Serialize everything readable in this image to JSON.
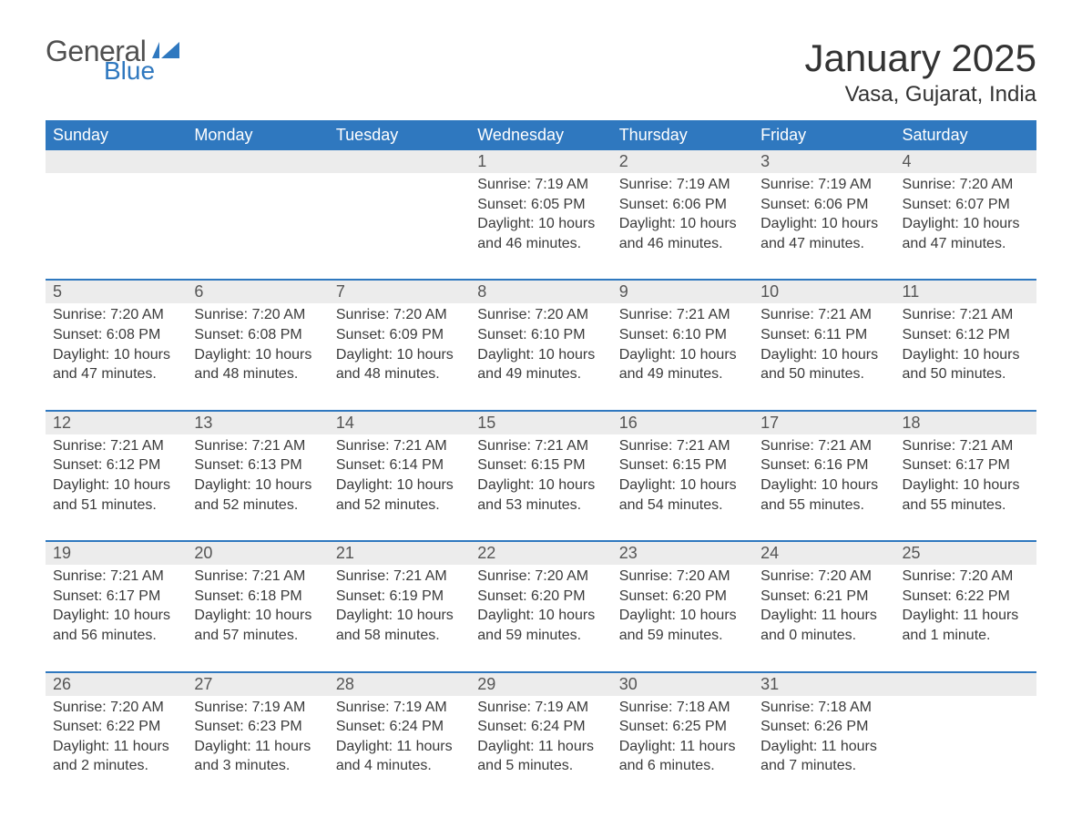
{
  "logo": {
    "general": "General",
    "blue": "Blue"
  },
  "title": "January 2025",
  "location": "Vasa, Gujarat, India",
  "weekdays": [
    "Sunday",
    "Monday",
    "Tuesday",
    "Wednesday",
    "Thursday",
    "Friday",
    "Saturday"
  ],
  "colors": {
    "header_bg": "#2f78bf",
    "header_text": "#ffffff",
    "row_separator": "#2f78bf",
    "date_bg": "#ececec",
    "body_text": "#3a3a3a",
    "page_bg": "#ffffff"
  },
  "weeks": [
    [
      {
        "date": "",
        "sunrise": "",
        "sunset": "",
        "daylight1": "",
        "daylight2": ""
      },
      {
        "date": "",
        "sunrise": "",
        "sunset": "",
        "daylight1": "",
        "daylight2": ""
      },
      {
        "date": "",
        "sunrise": "",
        "sunset": "",
        "daylight1": "",
        "daylight2": ""
      },
      {
        "date": "1",
        "sunrise": "Sunrise: 7:19 AM",
        "sunset": "Sunset: 6:05 PM",
        "daylight1": "Daylight: 10 hours",
        "daylight2": "and 46 minutes."
      },
      {
        "date": "2",
        "sunrise": "Sunrise: 7:19 AM",
        "sunset": "Sunset: 6:06 PM",
        "daylight1": "Daylight: 10 hours",
        "daylight2": "and 46 minutes."
      },
      {
        "date": "3",
        "sunrise": "Sunrise: 7:19 AM",
        "sunset": "Sunset: 6:06 PM",
        "daylight1": "Daylight: 10 hours",
        "daylight2": "and 47 minutes."
      },
      {
        "date": "4",
        "sunrise": "Sunrise: 7:20 AM",
        "sunset": "Sunset: 6:07 PM",
        "daylight1": "Daylight: 10 hours",
        "daylight2": "and 47 minutes."
      }
    ],
    [
      {
        "date": "5",
        "sunrise": "Sunrise: 7:20 AM",
        "sunset": "Sunset: 6:08 PM",
        "daylight1": "Daylight: 10 hours",
        "daylight2": "and 47 minutes."
      },
      {
        "date": "6",
        "sunrise": "Sunrise: 7:20 AM",
        "sunset": "Sunset: 6:08 PM",
        "daylight1": "Daylight: 10 hours",
        "daylight2": "and 48 minutes."
      },
      {
        "date": "7",
        "sunrise": "Sunrise: 7:20 AM",
        "sunset": "Sunset: 6:09 PM",
        "daylight1": "Daylight: 10 hours",
        "daylight2": "and 48 minutes."
      },
      {
        "date": "8",
        "sunrise": "Sunrise: 7:20 AM",
        "sunset": "Sunset: 6:10 PM",
        "daylight1": "Daylight: 10 hours",
        "daylight2": "and 49 minutes."
      },
      {
        "date": "9",
        "sunrise": "Sunrise: 7:21 AM",
        "sunset": "Sunset: 6:10 PM",
        "daylight1": "Daylight: 10 hours",
        "daylight2": "and 49 minutes."
      },
      {
        "date": "10",
        "sunrise": "Sunrise: 7:21 AM",
        "sunset": "Sunset: 6:11 PM",
        "daylight1": "Daylight: 10 hours",
        "daylight2": "and 50 minutes."
      },
      {
        "date": "11",
        "sunrise": "Sunrise: 7:21 AM",
        "sunset": "Sunset: 6:12 PM",
        "daylight1": "Daylight: 10 hours",
        "daylight2": "and 50 minutes."
      }
    ],
    [
      {
        "date": "12",
        "sunrise": "Sunrise: 7:21 AM",
        "sunset": "Sunset: 6:12 PM",
        "daylight1": "Daylight: 10 hours",
        "daylight2": "and 51 minutes."
      },
      {
        "date": "13",
        "sunrise": "Sunrise: 7:21 AM",
        "sunset": "Sunset: 6:13 PM",
        "daylight1": "Daylight: 10 hours",
        "daylight2": "and 52 minutes."
      },
      {
        "date": "14",
        "sunrise": "Sunrise: 7:21 AM",
        "sunset": "Sunset: 6:14 PM",
        "daylight1": "Daylight: 10 hours",
        "daylight2": "and 52 minutes."
      },
      {
        "date": "15",
        "sunrise": "Sunrise: 7:21 AM",
        "sunset": "Sunset: 6:15 PM",
        "daylight1": "Daylight: 10 hours",
        "daylight2": "and 53 minutes."
      },
      {
        "date": "16",
        "sunrise": "Sunrise: 7:21 AM",
        "sunset": "Sunset: 6:15 PM",
        "daylight1": "Daylight: 10 hours",
        "daylight2": "and 54 minutes."
      },
      {
        "date": "17",
        "sunrise": "Sunrise: 7:21 AM",
        "sunset": "Sunset: 6:16 PM",
        "daylight1": "Daylight: 10 hours",
        "daylight2": "and 55 minutes."
      },
      {
        "date": "18",
        "sunrise": "Sunrise: 7:21 AM",
        "sunset": "Sunset: 6:17 PM",
        "daylight1": "Daylight: 10 hours",
        "daylight2": "and 55 minutes."
      }
    ],
    [
      {
        "date": "19",
        "sunrise": "Sunrise: 7:21 AM",
        "sunset": "Sunset: 6:17 PM",
        "daylight1": "Daylight: 10 hours",
        "daylight2": "and 56 minutes."
      },
      {
        "date": "20",
        "sunrise": "Sunrise: 7:21 AM",
        "sunset": "Sunset: 6:18 PM",
        "daylight1": "Daylight: 10 hours",
        "daylight2": "and 57 minutes."
      },
      {
        "date": "21",
        "sunrise": "Sunrise: 7:21 AM",
        "sunset": "Sunset: 6:19 PM",
        "daylight1": "Daylight: 10 hours",
        "daylight2": "and 58 minutes."
      },
      {
        "date": "22",
        "sunrise": "Sunrise: 7:20 AM",
        "sunset": "Sunset: 6:20 PM",
        "daylight1": "Daylight: 10 hours",
        "daylight2": "and 59 minutes."
      },
      {
        "date": "23",
        "sunrise": "Sunrise: 7:20 AM",
        "sunset": "Sunset: 6:20 PM",
        "daylight1": "Daylight: 10 hours",
        "daylight2": "and 59 minutes."
      },
      {
        "date": "24",
        "sunrise": "Sunrise: 7:20 AM",
        "sunset": "Sunset: 6:21 PM",
        "daylight1": "Daylight: 11 hours",
        "daylight2": "and 0 minutes."
      },
      {
        "date": "25",
        "sunrise": "Sunrise: 7:20 AM",
        "sunset": "Sunset: 6:22 PM",
        "daylight1": "Daylight: 11 hours",
        "daylight2": "and 1 minute."
      }
    ],
    [
      {
        "date": "26",
        "sunrise": "Sunrise: 7:20 AM",
        "sunset": "Sunset: 6:22 PM",
        "daylight1": "Daylight: 11 hours",
        "daylight2": "and 2 minutes."
      },
      {
        "date": "27",
        "sunrise": "Sunrise: 7:19 AM",
        "sunset": "Sunset: 6:23 PM",
        "daylight1": "Daylight: 11 hours",
        "daylight2": "and 3 minutes."
      },
      {
        "date": "28",
        "sunrise": "Sunrise: 7:19 AM",
        "sunset": "Sunset: 6:24 PM",
        "daylight1": "Daylight: 11 hours",
        "daylight2": "and 4 minutes."
      },
      {
        "date": "29",
        "sunrise": "Sunrise: 7:19 AM",
        "sunset": "Sunset: 6:24 PM",
        "daylight1": "Daylight: 11 hours",
        "daylight2": "and 5 minutes."
      },
      {
        "date": "30",
        "sunrise": "Sunrise: 7:18 AM",
        "sunset": "Sunset: 6:25 PM",
        "daylight1": "Daylight: 11 hours",
        "daylight2": "and 6 minutes."
      },
      {
        "date": "31",
        "sunrise": "Sunrise: 7:18 AM",
        "sunset": "Sunset: 6:26 PM",
        "daylight1": "Daylight: 11 hours",
        "daylight2": "and 7 minutes."
      },
      {
        "date": "",
        "sunrise": "",
        "sunset": "",
        "daylight1": "",
        "daylight2": ""
      }
    ]
  ]
}
